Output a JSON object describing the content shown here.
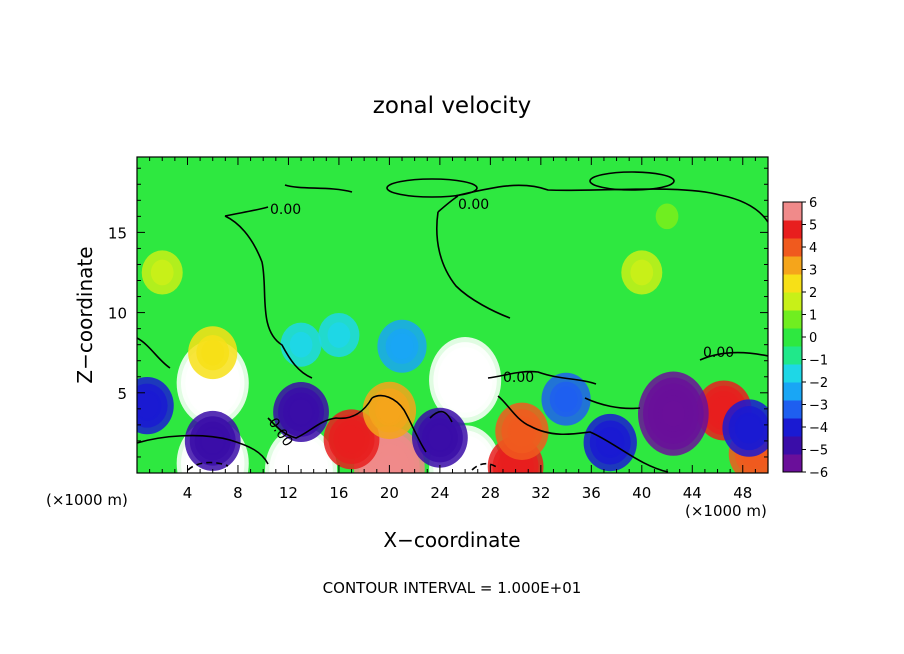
{
  "chart_data": {
    "type": "heatmap",
    "title": "zonal velocity",
    "xlabel": "X−coordinate",
    "ylabel": "Z−coordinate",
    "x_unit_left": "(×1000 m)",
    "x_unit_right": "(×1000 m)",
    "xlim": [
      0,
      50
    ],
    "ylim": [
      0,
      19.7
    ],
    "x_ticks": [
      4,
      8,
      12,
      16,
      20,
      24,
      28,
      32,
      36,
      40,
      44,
      48
    ],
    "x_tick_labels": [
      "4",
      "8",
      "12",
      "16",
      "20",
      "24",
      "28",
      "32",
      "36",
      "40",
      "44",
      "48"
    ],
    "y_ticks": [
      5,
      10,
      15
    ],
    "y_tick_labels": [
      "5",
      "10",
      "15"
    ],
    "colorbar": {
      "min": -6,
      "max": 6,
      "ticks": [
        6,
        5,
        4,
        3,
        2,
        1,
        0,
        -1,
        -2,
        -3,
        -4,
        -5,
        -6
      ],
      "tick_labels": [
        "6",
        "5",
        "4",
        "3",
        "2",
        "1",
        "0",
        "−1",
        "−2",
        "−3",
        "−4",
        "−5",
        "−6"
      ],
      "colors": [
        "#6a0f9a",
        "#3a0da8",
        "#1a1ad2",
        "#1e5ff0",
        "#19a6f5",
        "#1ed7e6",
        "#20e88a",
        "#2ee840",
        "#70ee20",
        "#c8f018",
        "#f7e017",
        "#f5a51b",
        "#f05a1e",
        "#e81e1e",
        "#f08a8a"
      ]
    },
    "contour_labels": [
      "0.00",
      "0.00",
      "0.00",
      "0.00",
      "0.00"
    ],
    "annotation": "CONTOUR INTERVAL = 1.000E+01",
    "features": [
      {
        "x": 6,
        "z": 5.6,
        "u": 7
      },
      {
        "x": 26,
        "z": 5.8,
        "u": 6.5
      },
      {
        "x": 6,
        "z": 0.6,
        "u": 7
      },
      {
        "x": 13,
        "z": 0.2,
        "u": 6.5
      },
      {
        "x": 26,
        "z": 0.3,
        "u": 6.5
      },
      {
        "x": 30,
        "z": 0.4,
        "u": 5
      },
      {
        "x": 20,
        "z": 0.3,
        "u": 6
      },
      {
        "x": 17,
        "z": 2.1,
        "u": 5
      },
      {
        "x": 30.5,
        "z": 2.6,
        "u": 4
      },
      {
        "x": 46.5,
        "z": 3.9,
        "u": 4.5
      },
      {
        "x": 49,
        "z": 1.2,
        "u": 4
      },
      {
        "x": 20,
        "z": 3.9,
        "u": 3.5
      },
      {
        "x": 6,
        "z": 2.0,
        "u": -5
      },
      {
        "x": 13,
        "z": 3.8,
        "u": -5
      },
      {
        "x": 24,
        "z": 2.2,
        "u": -5
      },
      {
        "x": 42.5,
        "z": 3.7,
        "u": -5.5
      },
      {
        "x": 37.5,
        "z": 1.9,
        "u": -4
      },
      {
        "x": 48.5,
        "z": 2.8,
        "u": -4
      },
      {
        "x": 0.8,
        "z": 4.2,
        "u": -4
      },
      {
        "x": 34,
        "z": 4.6,
        "u": -3
      },
      {
        "x": 16,
        "z": 8.6,
        "u": -2
      },
      {
        "x": 21,
        "z": 7.9,
        "u": -2.5
      },
      {
        "x": 13,
        "z": 8.0,
        "u": -1.5
      },
      {
        "x": 40,
        "z": 12.5,
        "u": 1.8
      },
      {
        "x": 2,
        "z": 12.5,
        "u": 1.2
      },
      {
        "x": 42,
        "z": 16,
        "u": 1
      },
      {
        "x": 6,
        "z": 7.5,
        "u": 2.5
      }
    ]
  }
}
